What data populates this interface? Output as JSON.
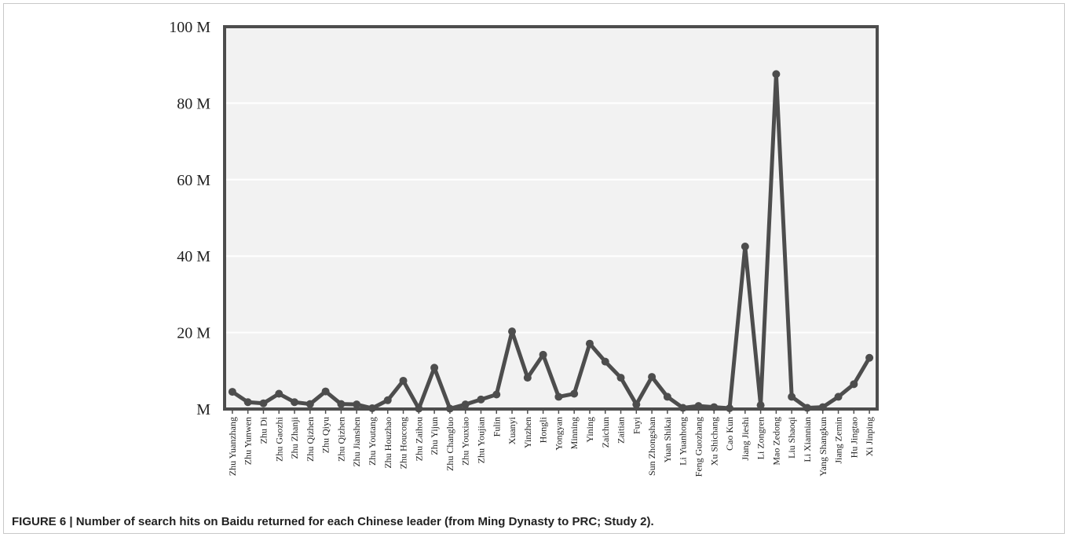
{
  "caption": "FIGURE 6 | Number of search hits on Baidu returned for each Chinese leader (from Ming Dynasty to PRC; Study 2).",
  "colors": {
    "plot_background": "#f2f2f2",
    "series_line": "#4d4d4d",
    "grid": "#ffffff",
    "text": "#222222"
  },
  "chart_data": {
    "type": "line",
    "title": "",
    "xlabel": "",
    "ylabel": "",
    "ylim": [
      0,
      100
    ],
    "grid": true,
    "y_ticks": [
      {
        "value": 0,
        "label": "M"
      },
      {
        "value": 20,
        "label": "20 M"
      },
      {
        "value": 40,
        "label": "40 M"
      },
      {
        "value": 60,
        "label": "60 M"
      },
      {
        "value": 80,
        "label": "80 M"
      },
      {
        "value": 100,
        "label": "100 M"
      }
    ],
    "categories": [
      "Zhu Yuanzhang",
      "Zhu Yunwen",
      "Zhu Di",
      "Zhu Gaozhi",
      "Zhu Zhanji",
      "Zhu Qizhen",
      "Zhu Qiyu",
      "Zhu Qizhen",
      "Zhu Jianshen",
      "Zhu Youtang",
      "Zhu Houzhao",
      "Zhu Houcong",
      "Zhu Zaihou",
      "Zhu Yijun",
      "Zhu Changluo",
      "Zhu Youxiao",
      "Zhu Youjian",
      "Fulin",
      "Xuanyi",
      "Yinzhen",
      "Hongli",
      "Yongyan",
      "Minning",
      "Yining",
      "Zaichun",
      "Zaitian",
      "Fuyi",
      "Sun Zhongshan",
      "Yuan Shikai",
      "Li Yuanhong",
      "Feng Guozhang",
      "Xu Shichang",
      "Cao Kun",
      "Jiang Jieshi",
      "Li Zongren",
      "Mao Zedong",
      "Liu Shaoqi",
      "Li Xiannian",
      "Yang Shangkun",
      "Jiang Zemin",
      "Hu Jingtao",
      "Xi Jinping"
    ],
    "series": [
      {
        "values": [
          4.5,
          1.8,
          1.5,
          4.0,
          1.8,
          1.3,
          4.6,
          1.3,
          1.2,
          0.2,
          2.3,
          7.4,
          0.1,
          10.8,
          0.1,
          1.2,
          2.5,
          3.8,
          20.3,
          8.2,
          14.2,
          3.2,
          4.0,
          17.1,
          12.4,
          8.2,
          1.2,
          8.4,
          3.2,
          0.3,
          0.8,
          0.5,
          0.2,
          42.5,
          1.0,
          87.6,
          3.2,
          0.3,
          0.5,
          3.2,
          6.5,
          13.4
        ]
      }
    ]
  }
}
